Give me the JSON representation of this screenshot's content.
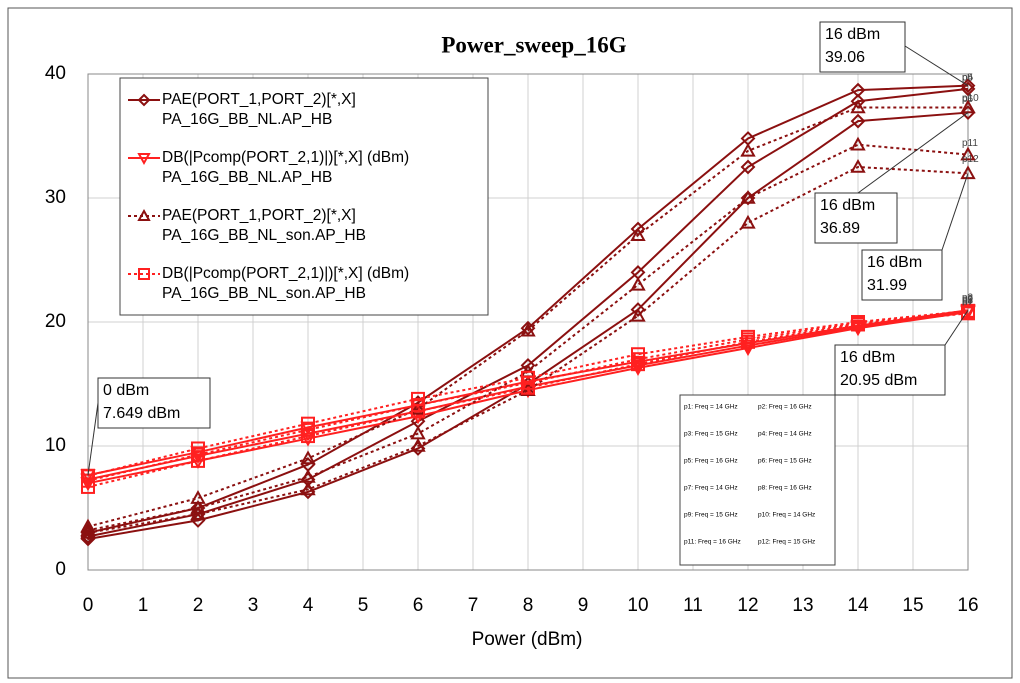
{
  "chart_data": {
    "type": "line",
    "title": "Power_sweep_16G",
    "x_label": "Power (dBm)",
    "x": [
      0,
      2,
      4,
      6,
      8,
      10,
      12,
      14,
      16
    ],
    "xlim": [
      0,
      16
    ],
    "xticks": [
      0,
      1,
      2,
      3,
      4,
      5,
      6,
      7,
      8,
      9,
      10,
      11,
      12,
      13,
      14,
      15,
      16
    ],
    "ylim": [
      0,
      40
    ],
    "yticks": [
      0,
      10,
      20,
      30,
      40
    ],
    "grid": true,
    "series": [
      {
        "name": "PAE(PORT_1,PORT_2)[*,X]",
        "source": "PA_16G_BB_NL.AP_HB",
        "color": "#8b1010",
        "line_style": "solid",
        "marker": "diamond",
        "traces": [
          {
            "tag": "p4",
            "values": [
              3,
              5,
              8.5,
              13.5,
              19.5,
              27.5,
              34.8,
              38.7,
              39.06
            ]
          },
          {
            "tag": "p5",
            "values": [
              2.7,
              4.5,
              7.3,
              12,
              16.5,
              24,
              32.5,
              37.8,
              38.8
            ]
          },
          {
            "tag": "p10",
            "values": [
              2.5,
              4,
              6.3,
              9.8,
              15,
              21,
              30,
              36.2,
              36.89
            ]
          }
        ]
      },
      {
        "name": "DB(|Pcomp(PORT_2,1)|)[*,X] (dBm)",
        "source": "PA_16G_BB_NL.AP_HB",
        "color": "#ff2020",
        "line_style": "solid",
        "marker": "triangle-down",
        "traces": [
          {
            "tag": "p1",
            "values": [
              7.649,
              9.5,
              11.5,
              13.3,
              15.2,
              16.8,
              18.3,
              19.7,
              20.95
            ]
          },
          {
            "tag": "p2",
            "values": [
              7.3,
              9.2,
              11,
              12.8,
              14.8,
              16.5,
              18.1,
              19.6,
              20.9
            ]
          },
          {
            "tag": "p3",
            "values": [
              7,
              8.8,
              10.6,
              12.4,
              14.5,
              16.3,
              17.9,
              19.5,
              20.8
            ]
          }
        ]
      },
      {
        "name": "PAE(PORT_1,PORT_2)[*,X]",
        "source": "PA_16G_BB_NL_son.AP_HB",
        "color": "#8b1010",
        "line_style": "dotted",
        "marker": "triangle",
        "traces": [
          {
            "tag": "p6",
            "values": [
              3.5,
              5.8,
              9,
              13,
              19.3,
              27,
              33.8,
              37.3,
              37.3
            ]
          },
          {
            "tag": "p11",
            "values": [
              3.2,
              5,
              7.5,
              11,
              16,
              23,
              30,
              34.3,
              33.5
            ]
          },
          {
            "tag": "p12",
            "values": [
              3,
              4.5,
              6.5,
              10,
              14.5,
              20.5,
              28,
              32.5,
              31.99
            ]
          }
        ]
      },
      {
        "name": "DB(|Pcomp(PORT_2,1)|)[*,X] (dBm)",
        "source": "PA_16G_BB_NL_son.AP_HB",
        "color": "#ff2020",
        "line_style": "dotted",
        "marker": "square",
        "traces": [
          {
            "tag": "p7",
            "values": [
              7.6,
              9.8,
              11.8,
              13.8,
              15.5,
              17.4,
              18.8,
              20,
              20.9
            ]
          },
          {
            "tag": "p8",
            "values": [
              7.2,
              9.3,
              11.3,
              13.3,
              15.1,
              17,
              18.6,
              19.9,
              20.8
            ]
          },
          {
            "tag": "p9",
            "values": [
              6.7,
              8.8,
              10.8,
              12.8,
              14.7,
              16.6,
              18.4,
              19.8,
              20.7
            ]
          }
        ]
      }
    ],
    "annotations": [
      {
        "lines": [
          "16 dBm",
          "39.06"
        ]
      },
      {
        "lines": [
          "16 dBm",
          "36.89"
        ]
      },
      {
        "lines": [
          "16 dBm",
          "31.99"
        ]
      },
      {
        "lines": [
          "16 dBm",
          "20.95 dBm"
        ]
      },
      {
        "lines": [
          "0 dBm",
          "7.649 dBm"
        ]
      }
    ],
    "marker_info": [
      "p1: Freq = 14 GHz",
      "p2: Freq = 16 GHz",
      "p3: Freq = 15 GHz",
      "p4: Freq = 14 GHz",
      "p5: Freq = 16 GHz",
      "p6: Freq = 15 GHz",
      "p7: Freq = 14 GHz",
      "p8: Freq = 16 GHz",
      "p9: Freq = 15 GHz",
      "p10: Freq = 14 GHz",
      "p11: Freq = 16 GHz",
      "p12: Freq = 15 GHz"
    ]
  }
}
